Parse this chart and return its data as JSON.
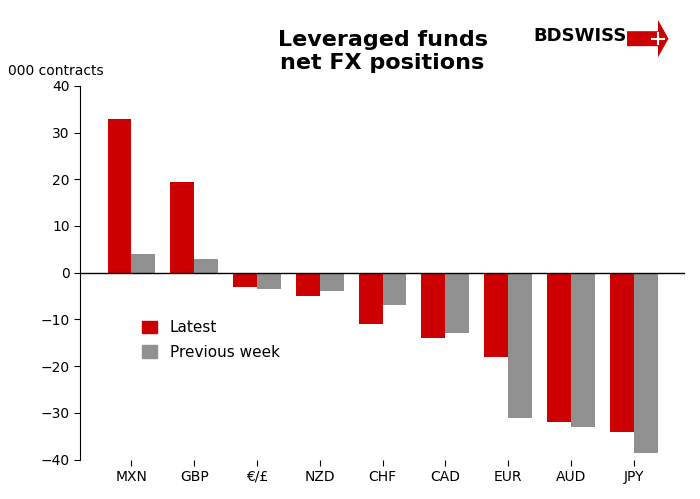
{
  "title_line1": "Leveraged funds",
  "title_line2": "net FX positions",
  "ylabel": "000 contracts",
  "categories": [
    "MXN",
    "GBP",
    "€/£",
    "NZD",
    "CHF",
    "CAD",
    "EUR",
    "AUD",
    "JPY"
  ],
  "latest": [
    33,
    19.5,
    -3.0,
    -5.0,
    -11.0,
    -14.0,
    -18.0,
    -32.0,
    -34.0
  ],
  "previous_week": [
    4,
    3.0,
    -3.5,
    -4.0,
    -7.0,
    -13.0,
    -31.0,
    -33.0,
    -38.5
  ],
  "color_latest": "#cc0000",
  "color_previous": "#909090",
  "ylim": [
    -40,
    40
  ],
  "yticks": [
    -40,
    -30,
    -20,
    -10,
    0,
    10,
    20,
    30,
    40
  ],
  "legend_latest": "Latest",
  "legend_previous": "Previous week",
  "bar_width": 0.38,
  "background_color": "#ffffff",
  "bdswiss_text": "BDSWISS",
  "title_fontsize": 16,
  "axis_fontsize": 10,
  "tick_fontsize": 10
}
